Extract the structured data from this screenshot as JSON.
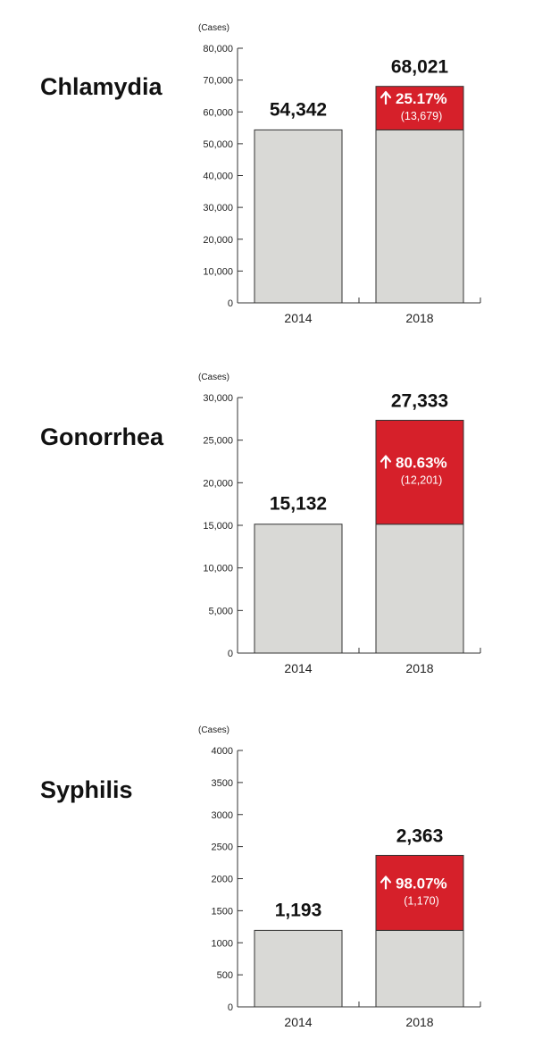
{
  "colors": {
    "base_bar": "#d9d9d6",
    "increase_bar": "#d6202a",
    "axis": "#333333",
    "text": "#111111"
  },
  "arrow_icon": "up-arrow-icon",
  "chart_data": [
    {
      "type": "bar",
      "title": "Chlamydia",
      "unit_label": "(Cases)",
      "categories": [
        "2014",
        "2018"
      ],
      "values": [
        54342,
        68021
      ],
      "value_labels": [
        "54,342",
        "68,021"
      ],
      "increase": {
        "value": 13679,
        "percent_label": "25.17%",
        "count_label": "(13,679)"
      },
      "ylim": [
        0,
        80000
      ],
      "yticks": [
        0,
        10000,
        20000,
        30000,
        40000,
        50000,
        60000,
        70000,
        80000
      ],
      "ytick_labels": [
        "0",
        "10,000",
        "20,000",
        "30,000",
        "40,000",
        "50,000",
        "60,000",
        "70,000",
        "80,000"
      ],
      "grid": false
    },
    {
      "type": "bar",
      "title": "Gonorrhea",
      "unit_label": "(Cases)",
      "categories": [
        "2014",
        "2018"
      ],
      "values": [
        15132,
        27333
      ],
      "value_labels": [
        "15,132",
        "27,333"
      ],
      "increase": {
        "value": 12201,
        "percent_label": "80.63%",
        "count_label": "(12,201)"
      },
      "ylim": [
        0,
        30000
      ],
      "yticks": [
        0,
        5000,
        10000,
        15000,
        20000,
        25000,
        30000
      ],
      "ytick_labels": [
        "0",
        "5,000",
        "10,000",
        "15,000",
        "20,000",
        "25,000",
        "30,000"
      ],
      "grid": false
    },
    {
      "type": "bar",
      "title": "Syphilis",
      "unit_label": "(Cases)",
      "categories": [
        "2014",
        "2018"
      ],
      "values": [
        1193,
        2363
      ],
      "value_labels": [
        "1,193",
        "2,363"
      ],
      "increase": {
        "value": 1170,
        "percent_label": "98.07%",
        "count_label": "(1,170)"
      },
      "ylim": [
        0,
        4000
      ],
      "yticks": [
        0,
        500,
        1000,
        1500,
        2000,
        2500,
        3000,
        3500,
        4000
      ],
      "ytick_labels": [
        "0",
        "500",
        "1000",
        "1500",
        "2000",
        "2500",
        "3000",
        "3500",
        "4000"
      ],
      "grid": false
    }
  ]
}
